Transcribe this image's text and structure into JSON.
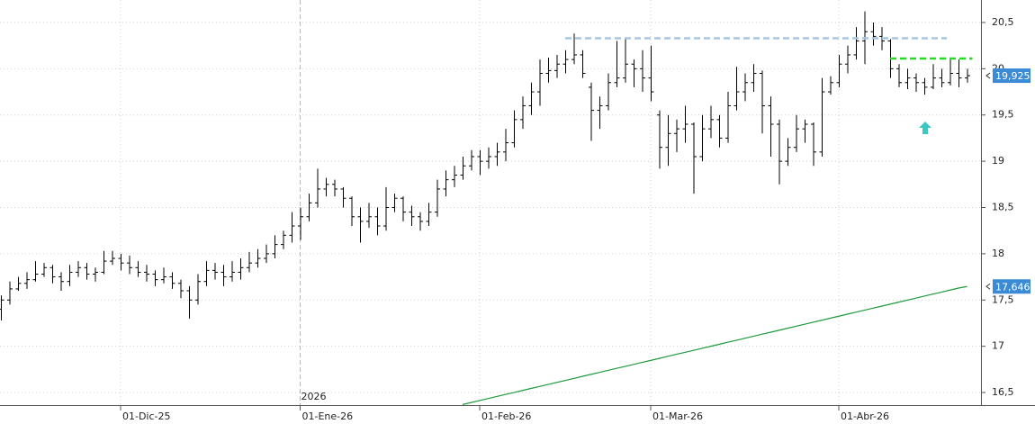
{
  "chart_data": {
    "type": "ohlc",
    "color": "#000000",
    "categories": [
      null,
      null,
      null,
      null,
      null,
      null,
      null,
      null,
      null,
      null,
      null,
      null,
      null,
      null,
      "01-Dic-25",
      null,
      null,
      null,
      null,
      null,
      null,
      null,
      null,
      null,
      null,
      null,
      null,
      null,
      null,
      null,
      null,
      null,
      null,
      null,
      null,
      "01-Ene-26",
      null,
      null,
      null,
      null,
      null,
      null,
      null,
      null,
      null,
      null,
      null,
      null,
      null,
      null,
      null,
      null,
      null,
      null,
      null,
      null,
      "01-Feb-26",
      null,
      null,
      null,
      null,
      null,
      null,
      null,
      null,
      null,
      null,
      null,
      null,
      null,
      null,
      null,
      null,
      null,
      null,
      null,
      "01-Mar-26",
      null,
      null,
      null,
      null,
      null,
      null,
      null,
      null,
      null,
      null,
      null,
      null,
      null,
      null,
      null,
      null,
      null,
      null,
      null,
      null,
      null,
      "01-Abr-26",
      null,
      null,
      null,
      null,
      null,
      null,
      null,
      null,
      null,
      null,
      null,
      null,
      null,
      null,
      null
    ],
    "ohlc": [
      [
        17.4,
        17.55,
        17.28,
        17.5
      ],
      [
        17.5,
        17.7,
        17.45,
        17.62
      ],
      [
        17.62,
        17.75,
        17.6,
        17.68
      ],
      [
        17.68,
        17.8,
        17.62,
        17.72
      ],
      [
        17.72,
        17.92,
        17.7,
        17.78
      ],
      [
        17.78,
        17.9,
        17.75,
        17.85
      ],
      [
        17.85,
        17.88,
        17.68,
        17.75
      ],
      [
        17.75,
        17.8,
        17.6,
        17.7
      ],
      [
        17.7,
        17.88,
        17.65,
        17.8
      ],
      [
        17.8,
        17.92,
        17.75,
        17.85
      ],
      [
        17.85,
        17.9,
        17.72,
        17.78
      ],
      [
        17.78,
        17.85,
        17.7,
        17.8
      ],
      [
        17.8,
        18.03,
        17.78,
        17.92
      ],
      [
        17.92,
        18.03,
        17.88,
        17.95
      ],
      [
        17.95,
        18.0,
        17.82,
        17.9
      ],
      [
        17.9,
        17.98,
        17.78,
        17.85
      ],
      [
        17.85,
        17.92,
        17.75,
        17.8
      ],
      [
        17.8,
        17.88,
        17.7,
        17.78
      ],
      [
        17.78,
        17.82,
        17.65,
        17.72
      ],
      [
        17.72,
        17.85,
        17.68,
        17.75
      ],
      [
        17.75,
        17.8,
        17.62,
        17.68
      ],
      [
        17.68,
        17.72,
        17.52,
        17.6
      ],
      [
        17.6,
        17.65,
        17.3,
        17.5
      ],
      [
        17.5,
        17.78,
        17.45,
        17.7
      ],
      [
        17.7,
        17.92,
        17.65,
        17.82
      ],
      [
        17.82,
        17.9,
        17.72,
        17.8
      ],
      [
        17.8,
        17.88,
        17.65,
        17.75
      ],
      [
        17.75,
        17.92,
        17.7,
        17.8
      ],
      [
        17.8,
        17.95,
        17.72,
        17.85
      ],
      [
        17.85,
        18.02,
        17.8,
        17.9
      ],
      [
        17.9,
        18.05,
        17.85,
        17.95
      ],
      [
        17.95,
        18.1,
        17.9,
        18.0
      ],
      [
        18.0,
        18.2,
        17.95,
        18.1
      ],
      [
        18.1,
        18.25,
        18.05,
        18.2
      ],
      [
        18.2,
        18.45,
        18.12,
        18.3
      ],
      [
        18.3,
        18.5,
        18.15,
        18.4
      ],
      [
        18.4,
        18.65,
        18.35,
        18.55
      ],
      [
        18.55,
        18.92,
        18.5,
        18.7
      ],
      [
        18.7,
        18.82,
        18.62,
        18.75
      ],
      [
        18.75,
        18.8,
        18.62,
        18.7
      ],
      [
        18.7,
        18.72,
        18.5,
        18.6
      ],
      [
        18.6,
        18.62,
        18.3,
        18.4
      ],
      [
        18.4,
        18.5,
        18.12,
        18.35
      ],
      [
        18.35,
        18.55,
        18.28,
        18.4
      ],
      [
        18.4,
        18.5,
        18.2,
        18.3
      ],
      [
        18.3,
        18.72,
        18.25,
        18.5
      ],
      [
        18.5,
        18.65,
        18.45,
        18.6
      ],
      [
        18.6,
        18.62,
        18.35,
        18.45
      ],
      [
        18.45,
        18.52,
        18.3,
        18.4
      ],
      [
        18.4,
        18.45,
        18.25,
        18.35
      ],
      [
        18.35,
        18.55,
        18.3,
        18.45
      ],
      [
        18.45,
        18.8,
        18.4,
        18.7
      ],
      [
        18.7,
        18.9,
        18.62,
        18.8
      ],
      [
        18.8,
        18.95,
        18.72,
        18.85
      ],
      [
        18.85,
        19.05,
        18.8,
        18.95
      ],
      [
        18.95,
        19.12,
        18.9,
        19.05
      ],
      [
        19.05,
        19.12,
        18.85,
        19.0
      ],
      [
        19.0,
        19.15,
        18.92,
        19.05
      ],
      [
        19.05,
        19.2,
        18.95,
        19.1
      ],
      [
        19.1,
        19.35,
        19.0,
        19.2
      ],
      [
        19.2,
        19.55,
        19.15,
        19.45
      ],
      [
        19.45,
        19.7,
        19.35,
        19.6
      ],
      [
        19.6,
        19.85,
        19.5,
        19.75
      ],
      [
        19.75,
        20.1,
        19.6,
        19.95
      ],
      [
        19.95,
        20.12,
        19.85,
        19.98
      ],
      [
        19.98,
        20.15,
        19.9,
        20.05
      ],
      [
        20.05,
        20.2,
        19.95,
        20.1
      ],
      [
        20.1,
        20.38,
        20.05,
        20.15
      ],
      [
        20.15,
        20.2,
        19.9,
        19.95
      ],
      [
        19.8,
        19.85,
        19.22,
        19.55
      ],
      [
        19.55,
        19.7,
        19.35,
        19.6
      ],
      [
        19.6,
        19.95,
        19.55,
        19.85
      ],
      [
        19.85,
        20.3,
        19.8,
        19.9
      ],
      [
        19.9,
        20.32,
        19.85,
        20.05
      ],
      [
        20.05,
        20.1,
        19.8,
        20.0
      ],
      [
        20.0,
        20.2,
        19.75,
        19.9
      ],
      [
        19.9,
        20.25,
        19.65,
        19.75
      ],
      [
        19.5,
        19.55,
        18.92,
        19.15
      ],
      [
        19.15,
        19.5,
        18.95,
        19.3
      ],
      [
        19.3,
        19.45,
        19.1,
        19.35
      ],
      [
        19.35,
        19.6,
        19.2,
        19.4
      ],
      [
        19.4,
        19.42,
        18.65,
        19.05
      ],
      [
        19.05,
        19.5,
        19.0,
        19.35
      ],
      [
        19.35,
        19.6,
        19.25,
        19.45
      ],
      [
        19.45,
        19.5,
        19.15,
        19.25
      ],
      [
        19.25,
        19.75,
        19.2,
        19.6
      ],
      [
        19.6,
        20.02,
        19.55,
        19.75
      ],
      [
        19.75,
        19.95,
        19.65,
        19.85
      ],
      [
        19.85,
        20.05,
        19.75,
        19.95
      ],
      [
        19.95,
        19.98,
        19.3,
        19.6
      ],
      [
        19.6,
        19.7,
        19.05,
        19.4
      ],
      [
        19.4,
        19.45,
        18.75,
        19.0
      ],
      [
        19.0,
        19.25,
        18.95,
        19.15
      ],
      [
        19.15,
        19.5,
        19.1,
        19.35
      ],
      [
        19.35,
        19.45,
        19.2,
        19.4
      ],
      [
        19.4,
        19.42,
        18.95,
        19.1
      ],
      [
        19.1,
        19.9,
        19.05,
        19.75
      ],
      [
        19.75,
        19.92,
        19.72,
        19.85
      ],
      [
        19.85,
        20.15,
        19.8,
        20.05
      ],
      [
        20.05,
        20.25,
        19.95,
        20.15
      ],
      [
        20.15,
        20.45,
        20.1,
        20.3
      ],
      [
        20.3,
        20.62,
        20.05,
        20.4
      ],
      [
        20.4,
        20.5,
        20.25,
        20.35
      ],
      [
        20.35,
        20.45,
        20.2,
        20.3
      ],
      [
        20.3,
        20.32,
        19.9,
        20.0
      ],
      [
        20.0,
        20.05,
        19.8,
        19.85
      ],
      [
        19.85,
        20.0,
        19.78,
        19.9
      ],
      [
        19.9,
        19.95,
        19.75,
        19.85
      ],
      [
        19.85,
        19.9,
        19.72,
        19.8
      ],
      [
        19.8,
        20.05,
        19.78,
        19.9
      ],
      [
        19.9,
        20.0,
        19.8,
        19.85
      ],
      [
        19.85,
        20.1,
        19.82,
        19.95
      ],
      [
        19.95,
        20.1,
        19.8,
        19.9
      ],
      [
        19.9,
        20.0,
        19.85,
        19.925
      ]
    ],
    "close_label": "19,925",
    "moving_average": {
      "color": "#1f9a3c",
      "label": "17,646",
      "values": [
        null,
        null,
        null,
        null,
        null,
        null,
        null,
        null,
        null,
        null,
        null,
        null,
        null,
        null,
        null,
        null,
        null,
        null,
        null,
        null,
        null,
        null,
        null,
        null,
        null,
        null,
        null,
        null,
        null,
        null,
        null,
        null,
        null,
        null,
        null,
        null,
        null,
        null,
        null,
        null,
        null,
        null,
        null,
        null,
        null,
        null,
        null,
        null,
        null,
        null,
        null,
        null,
        null,
        null,
        16.37,
        16.392,
        16.413,
        16.435,
        16.457,
        16.479,
        16.5,
        16.522,
        16.544,
        16.565,
        16.587,
        16.609,
        16.63,
        16.652,
        16.674,
        16.696,
        16.717,
        16.739,
        16.761,
        16.782,
        16.804,
        16.826,
        16.847,
        16.869,
        16.891,
        16.913,
        16.934,
        16.956,
        16.978,
        16.999,
        17.021,
        17.043,
        17.064,
        17.086,
        17.108,
        17.13,
        17.151,
        17.173,
        17.195,
        17.216,
        17.238,
        17.26,
        17.281,
        17.303,
        17.325,
        17.347,
        17.368,
        17.39,
        17.412,
        17.433,
        17.455,
        17.477,
        17.498,
        17.52,
        17.542,
        17.564,
        17.585,
        17.607,
        17.629,
        17.646
      ]
    },
    "hlines": [
      {
        "value": 20.33,
        "color": "#a9c4e4",
        "from": 66,
        "to": 110
      },
      {
        "value": 20.11,
        "color": "#22dd22",
        "from": 104,
        "to": 113
      }
    ],
    "year_marker": {
      "label": "2026",
      "index": 35
    },
    "label_color": "#3a8ad6",
    "ylim": [
      16.364,
      20.743
    ],
    "yticks": [
      {
        "value": 16.5,
        "label": "16,5"
      },
      17,
      {
        "value": 17.5,
        "label": "17,5"
      },
      18,
      {
        "value": 18.5,
        "label": "18,5"
      },
      19,
      {
        "value": 19.5,
        "label": "19,5"
      },
      20,
      {
        "value": 20.5,
        "label": "20,5"
      }
    ],
    "grid": true
  }
}
